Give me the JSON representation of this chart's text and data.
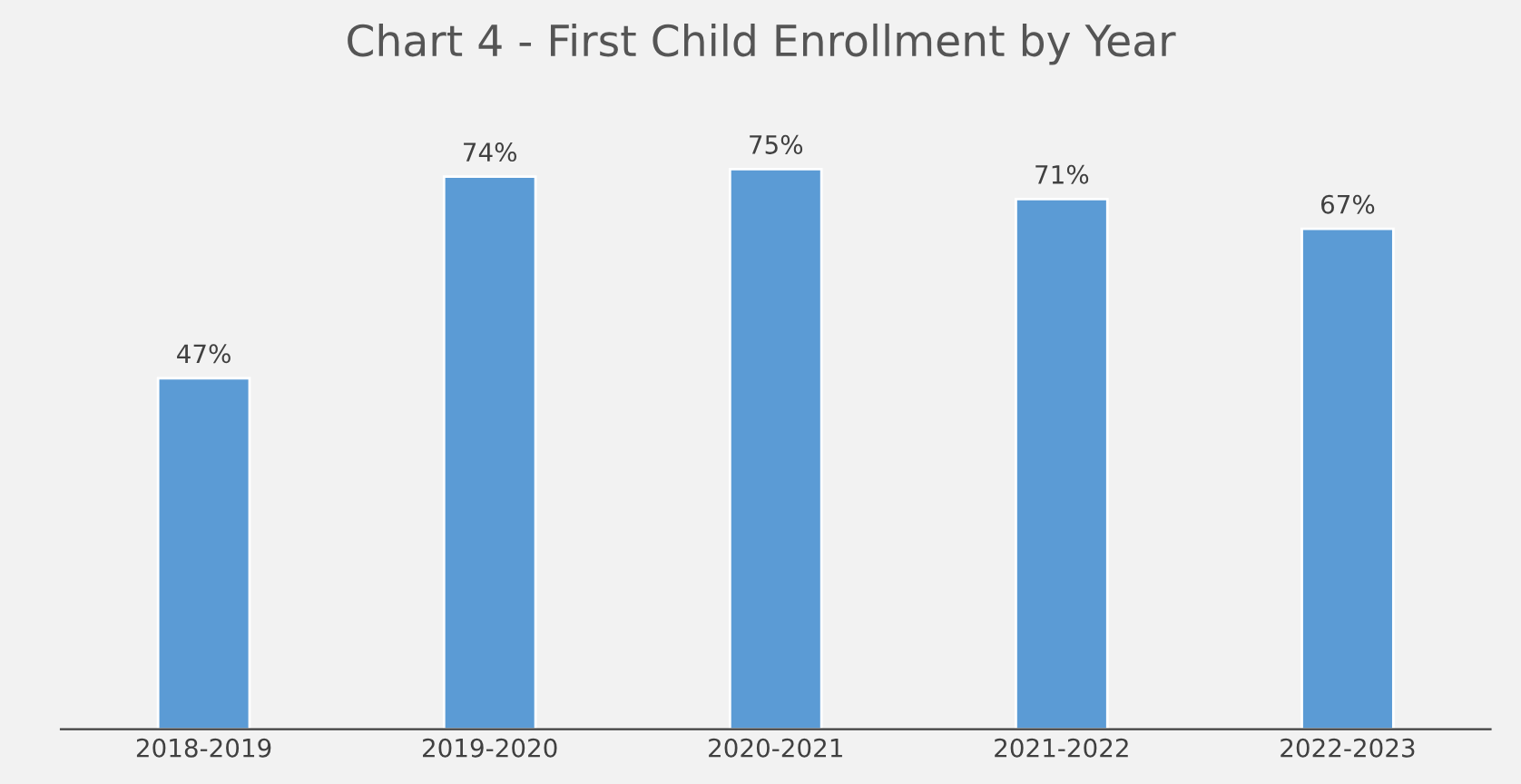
{
  "chart_data": {
    "type": "bar",
    "title": "Chart 4 - First Child Enrollment by Year",
    "categories": [
      "2018-2019",
      "2019-2020",
      "2020-2021",
      "2021-2022",
      "2022-2023"
    ],
    "values": [
      47,
      74,
      75,
      71,
      67
    ],
    "value_labels": [
      "47%",
      "74%",
      "75%",
      "71%",
      "67%"
    ],
    "color": "#5b9bd5",
    "grid": false
  }
}
